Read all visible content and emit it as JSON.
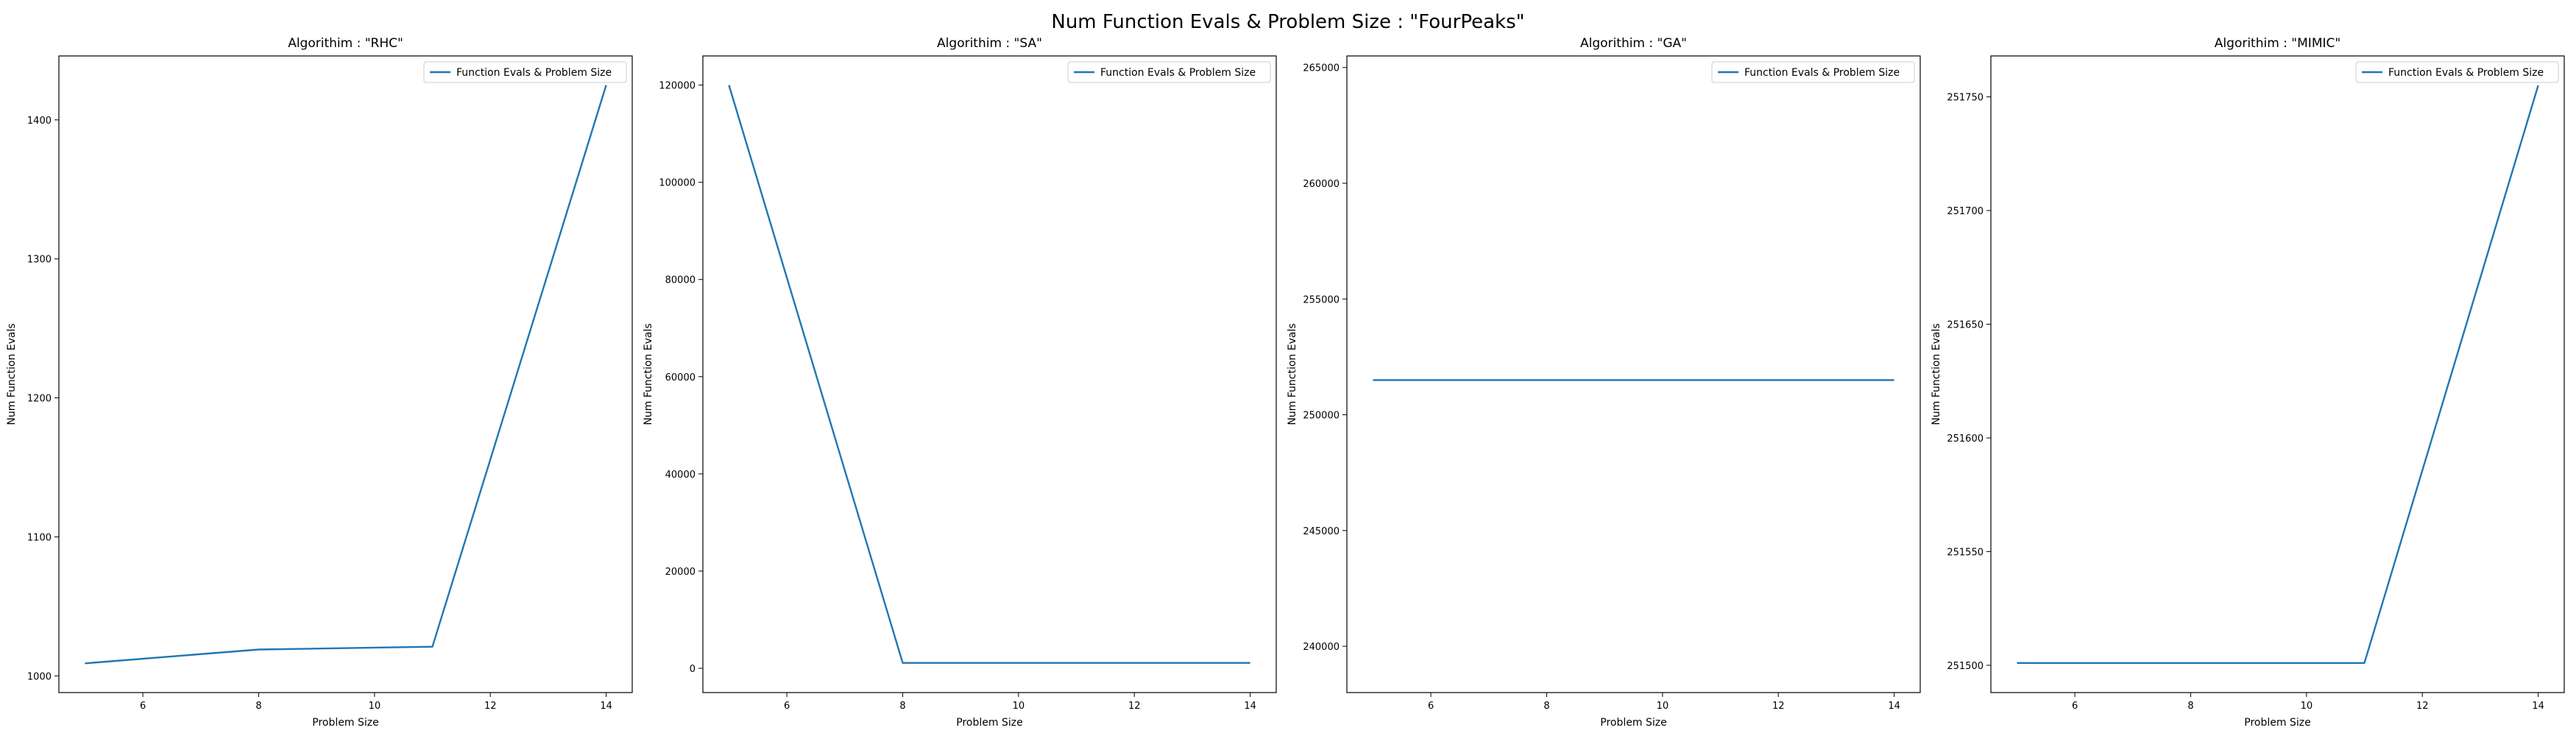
{
  "figure": {
    "title": "Num Function Evals & Problem Size : \"FourPeaks\""
  },
  "colors": {
    "series": "#1f77b4"
  },
  "chart_data": [
    {
      "type": "line",
      "title": "Algorithim : \"RHC\"",
      "xlabel": "Problem Size",
      "ylabel": "Num Function Evals",
      "xlim": [
        4.55,
        14.45
      ],
      "ylim": [
        988,
        1446
      ],
      "xticks": [
        6,
        8,
        10,
        12,
        14
      ],
      "yticks": [
        1000,
        1100,
        1200,
        1300,
        1400
      ],
      "legend_position": "upper right",
      "series": [
        {
          "name": "Function Evals & Problem Size",
          "x": [
            5,
            8,
            11,
            14
          ],
          "y": [
            1009,
            1019,
            1021,
            1425
          ]
        }
      ]
    },
    {
      "type": "line",
      "title": "Algorithim : \"SA\"",
      "xlabel": "Problem Size",
      "ylabel": "Num Function Evals",
      "xlim": [
        4.55,
        14.45
      ],
      "ylim": [
        -5000,
        126000
      ],
      "xticks": [
        6,
        8,
        10,
        12,
        14
      ],
      "yticks": [
        0,
        20000,
        40000,
        60000,
        80000,
        100000,
        120000
      ],
      "legend_position": "upper right",
      "series": [
        {
          "name": "Function Evals & Problem Size",
          "x": [
            5,
            8,
            11,
            14
          ],
          "y": [
            120000,
            1100,
            1100,
            1100
          ]
        }
      ]
    },
    {
      "type": "line",
      "title": "Algorithim : \"GA\"",
      "xlabel": "Problem Size",
      "ylabel": "Num Function Evals",
      "xlim": [
        4.55,
        14.45
      ],
      "ylim": [
        238000,
        265500
      ],
      "xticks": [
        6,
        8,
        10,
        12,
        14
      ],
      "yticks": [
        240000,
        245000,
        250000,
        255000,
        260000,
        265000
      ],
      "legend_position": "upper right",
      "series": [
        {
          "name": "Function Evals & Problem Size",
          "x": [
            5,
            8,
            11,
            14
          ],
          "y": [
            251500,
            251500,
            251500,
            251500
          ]
        }
      ]
    },
    {
      "type": "line",
      "title": "Algorithim : \"MIMIC\"",
      "xlabel": "Problem Size",
      "ylabel": "Num Function Evals",
      "xlim": [
        4.55,
        14.45
      ],
      "ylim": [
        251488,
        251768
      ],
      "xticks": [
        6,
        8,
        10,
        12,
        14
      ],
      "yticks": [
        251500,
        251550,
        251600,
        251650,
        251700,
        251750
      ],
      "legend_position": "upper right",
      "series": [
        {
          "name": "Function Evals & Problem Size",
          "x": [
            5,
            8,
            11,
            14
          ],
          "y": [
            251501,
            251501,
            251501,
            251755
          ]
        }
      ]
    }
  ]
}
